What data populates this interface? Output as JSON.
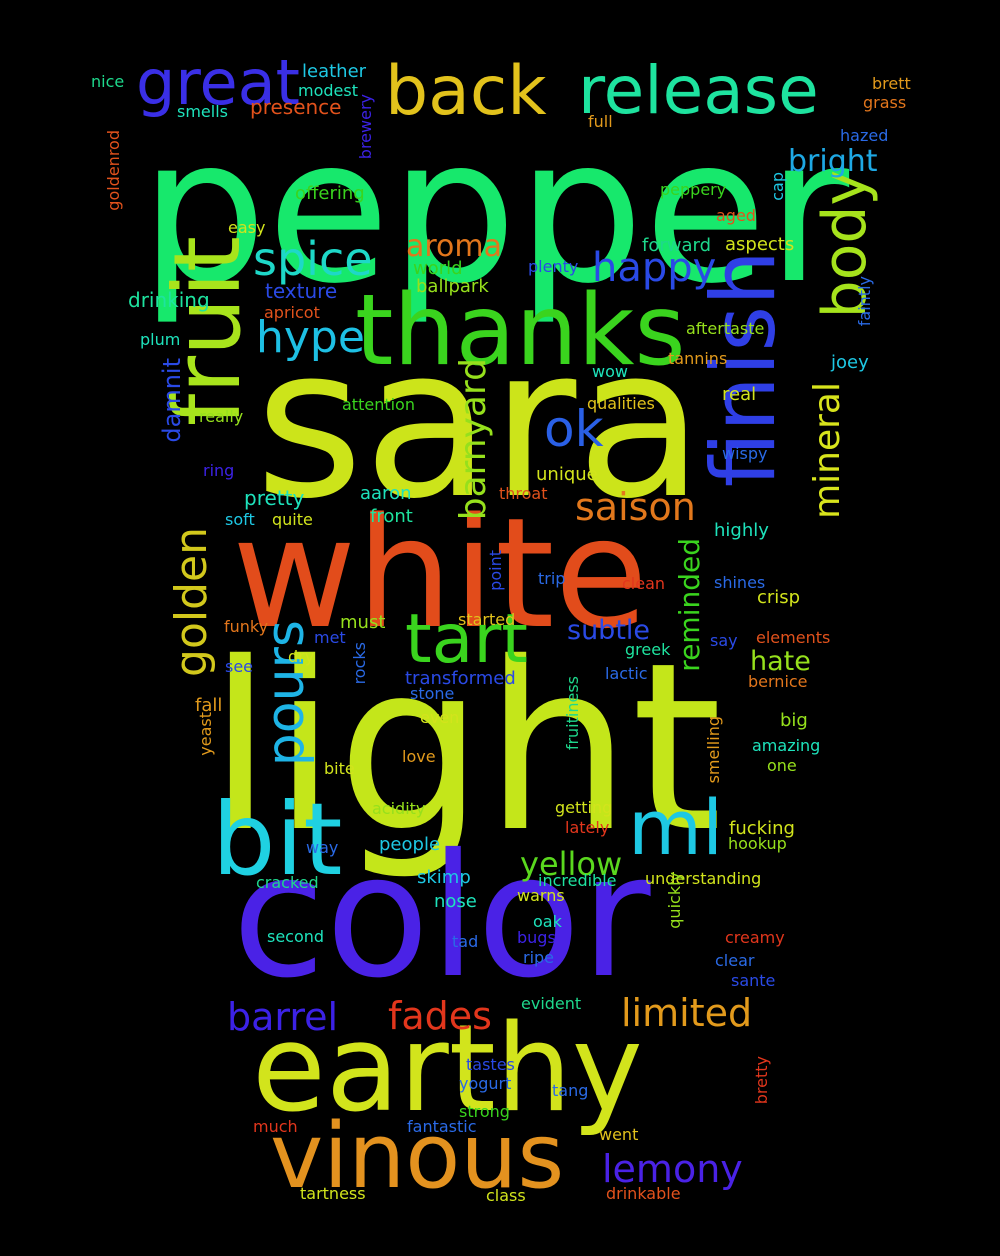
{
  "words": [
    {
      "text": "pepper",
      "color": "#17e86c"
    },
    {
      "text": "sara",
      "color": "#cce41a"
    },
    {
      "text": "light",
      "color": "#c4e61a"
    },
    {
      "text": "white",
      "color": "#e24c1b"
    },
    {
      "text": "color",
      "color": "#4a22e6"
    },
    {
      "text": "earthy",
      "color": "#d2e41c"
    },
    {
      "text": "thanks",
      "color": "#3ad41e"
    },
    {
      "text": "vinous",
      "color": "#e3921f"
    },
    {
      "text": "bit",
      "color": "#1fd1e2"
    },
    {
      "text": "finish",
      "color": "#2f3fe6"
    },
    {
      "text": "fruit",
      "color": "#a8e41c"
    },
    {
      "text": "release",
      "color": "#1ee39f"
    },
    {
      "text": "back",
      "color": "#e2c21c"
    },
    {
      "text": "great",
      "color": "#3a2fe6"
    },
    {
      "text": "body",
      "color": "#a6e31c"
    },
    {
      "text": "ml",
      "color": "#1ec8e4"
    },
    {
      "text": "tart",
      "color": "#3ad41e"
    },
    {
      "text": "pours",
      "color": "#1eb4e6"
    },
    {
      "text": "golden",
      "color": "#d2c81c"
    },
    {
      "text": "spice",
      "color": "#1ed8c8"
    },
    {
      "text": "hype",
      "color": "#1ec0e4"
    },
    {
      "text": "happy",
      "color": "#2a4ae6"
    },
    {
      "text": "ok",
      "color": "#2a60e6"
    },
    {
      "text": "saison",
      "color": "#e2781c"
    },
    {
      "text": "barnyard",
      "color": "#96e01c"
    },
    {
      "text": "mineral",
      "color": "#d8e41c"
    },
    {
      "text": "aroma",
      "color": "#e2761c"
    },
    {
      "text": "yellow",
      "color": "#5ad81e"
    },
    {
      "text": "lemony",
      "color": "#4a22e6"
    },
    {
      "text": "limited",
      "color": "#e29a1c"
    },
    {
      "text": "fades",
      "color": "#e2361c"
    },
    {
      "text": "barrel",
      "color": "#3c22e6"
    },
    {
      "text": "reminded",
      "color": "#3ad41e"
    },
    {
      "text": "bright",
      "color": "#1ea8e4"
    },
    {
      "text": "damnit",
      "color": "#2a4ae6"
    },
    {
      "text": "subtle",
      "color": "#2a4ae6"
    },
    {
      "text": "hate",
      "color": "#96e01c"
    },
    {
      "text": "drinking",
      "color": "#1ee39f"
    },
    {
      "text": "texture",
      "color": "#2a4ae6"
    },
    {
      "text": "world",
      "color": "#3ad41e"
    },
    {
      "text": "ballpark",
      "color": "#96e01c"
    },
    {
      "text": "plenty",
      "color": "#2a4ae6"
    },
    {
      "text": "forward",
      "color": "#1ed88c"
    },
    {
      "text": "aspects",
      "color": "#d2e41c"
    },
    {
      "text": "aged",
      "color": "#e2521c"
    },
    {
      "text": "peppery",
      "color": "#3ad41e"
    },
    {
      "text": "offering",
      "color": "#3ad41e"
    },
    {
      "text": "easy",
      "color": "#d2e41c"
    },
    {
      "text": "full",
      "color": "#e29a1c"
    },
    {
      "text": "presence",
      "color": "#e2521c"
    },
    {
      "text": "smells",
      "color": "#1ee3bc"
    },
    {
      "text": "modest",
      "color": "#1ee3bc"
    },
    {
      "text": "leather",
      "color": "#1ec8e4"
    },
    {
      "text": "nice",
      "color": "#1ed88c"
    },
    {
      "text": "brett",
      "color": "#e29a1c"
    },
    {
      "text": "grass",
      "color": "#e2761c"
    },
    {
      "text": "hazed",
      "color": "#2a6ae6"
    },
    {
      "text": "cap",
      "color": "#1ec8e4"
    },
    {
      "text": "brewery",
      "color": "#3c22e6"
    },
    {
      "text": "goldenrod",
      "color": "#e2521c"
    },
    {
      "text": "apricot",
      "color": "#e2521c"
    },
    {
      "text": "plum",
      "color": "#1ee3bc"
    },
    {
      "text": "aftertaste",
      "color": "#96e01c"
    },
    {
      "text": "tannins",
      "color": "#e29a1c"
    },
    {
      "text": "joey",
      "color": "#1ec8e4"
    },
    {
      "text": "faintly",
      "color": "#2a6ae6"
    },
    {
      "text": "wow",
      "color": "#1ee3bc"
    },
    {
      "text": "attention",
      "color": "#3ad41e"
    },
    {
      "text": "qualities",
      "color": "#e2c21c"
    },
    {
      "text": "real",
      "color": "#d2e41c"
    },
    {
      "text": "really",
      "color": "#96e01c"
    },
    {
      "text": "ring",
      "color": "#3c22e6"
    },
    {
      "text": "wispy",
      "color": "#2a6ae6"
    },
    {
      "text": "unique",
      "color": "#d2e41c"
    },
    {
      "text": "throat",
      "color": "#e2521c"
    },
    {
      "text": "aaron",
      "color": "#1ee3bc"
    },
    {
      "text": "pretty",
      "color": "#1ee3bc"
    },
    {
      "text": "soft",
      "color": "#1ec8e4"
    },
    {
      "text": "quite",
      "color": "#d2e41c"
    },
    {
      "text": "front",
      "color": "#1ee39f"
    },
    {
      "text": "highly",
      "color": "#1ee3bc"
    },
    {
      "text": "point",
      "color": "#2a4ae6"
    },
    {
      "text": "trip",
      "color": "#2a6ae6"
    },
    {
      "text": "clean",
      "color": "#e2361c"
    },
    {
      "text": "shines",
      "color": "#2a6ae6"
    },
    {
      "text": "crisp",
      "color": "#d2e41c"
    },
    {
      "text": "started",
      "color": "#e2c21c"
    },
    {
      "text": "must",
      "color": "#96e01c"
    },
    {
      "text": "funky",
      "color": "#e2761c"
    },
    {
      "text": "met",
      "color": "#2a4ae6"
    },
    {
      "text": "rocks",
      "color": "#2a6ae6"
    },
    {
      "text": "say",
      "color": "#2a4ae6"
    },
    {
      "text": "elements",
      "color": "#e2521c"
    },
    {
      "text": "greek",
      "color": "#1ee39f"
    },
    {
      "text": "see",
      "color": "#2a4ae6"
    },
    {
      "text": "dry",
      "color": "#d2e41c"
    },
    {
      "text": "transformed",
      "color": "#2a4ae6"
    },
    {
      "text": "lactic",
      "color": "#2a6ae6"
    },
    {
      "text": "bernice",
      "color": "#e2761c"
    },
    {
      "text": "stone",
      "color": "#2a6ae6"
    },
    {
      "text": "fall",
      "color": "#e29a1c"
    },
    {
      "text": "even",
      "color": "#d2e41c"
    },
    {
      "text": "fruitiness",
      "color": "#1ed88c"
    },
    {
      "text": "yeast",
      "color": "#e29a1c"
    },
    {
      "text": "big",
      "color": "#96e01c"
    },
    {
      "text": "smelling",
      "color": "#e29a1c"
    },
    {
      "text": "amazing",
      "color": "#1ee3bc"
    },
    {
      "text": "love",
      "color": "#e29a1c"
    },
    {
      "text": "bite",
      "color": "#d2e41c"
    },
    {
      "text": "one",
      "color": "#96e01c"
    },
    {
      "text": "acidity",
      "color": "#96e01c"
    },
    {
      "text": "getting",
      "color": "#d2e41c"
    },
    {
      "text": "lately",
      "color": "#e2361c"
    },
    {
      "text": "fucking",
      "color": "#d2e41c"
    },
    {
      "text": "way",
      "color": "#2a6ae6"
    },
    {
      "text": "people",
      "color": "#1ec8e4"
    },
    {
      "text": "hookup",
      "color": "#96e01c"
    },
    {
      "text": "cracked",
      "color": "#1ed88c"
    },
    {
      "text": "incredible",
      "color": "#1ee39f"
    },
    {
      "text": "understanding",
      "color": "#d2e41c"
    },
    {
      "text": "skimp",
      "color": "#1ec8e4"
    },
    {
      "text": "nose",
      "color": "#1ee3bc"
    },
    {
      "text": "warns",
      "color": "#d2e41c"
    },
    {
      "text": "quickly",
      "color": "#96e01c"
    },
    {
      "text": "oak",
      "color": "#1ee3bc"
    },
    {
      "text": "bugs",
      "color": "#3c22e6"
    },
    {
      "text": "creamy",
      "color": "#e2361c"
    },
    {
      "text": "second",
      "color": "#1ee3bc"
    },
    {
      "text": "tad",
      "color": "#2a6ae6"
    },
    {
      "text": "ripe",
      "color": "#2a6ae6"
    },
    {
      "text": "clear",
      "color": "#2a6ae6"
    },
    {
      "text": "sante",
      "color": "#2a4ae6"
    },
    {
      "text": "evident",
      "color": "#1ed88c"
    },
    {
      "text": "tastes",
      "color": "#2a4ae6"
    },
    {
      "text": "bretty",
      "color": "#e2361c"
    },
    {
      "text": "yogurt",
      "color": "#2a6ae6"
    },
    {
      "text": "tang",
      "color": "#2a6ae6"
    },
    {
      "text": "strong",
      "color": "#3ad41e"
    },
    {
      "text": "much",
      "color": "#e2361c"
    },
    {
      "text": "fantastic",
      "color": "#2a6ae6"
    },
    {
      "text": "went",
      "color": "#e2c21c"
    },
    {
      "text": "tartness",
      "color": "#d2e41c"
    },
    {
      "text": "class",
      "color": "#d2e41c"
    },
    {
      "text": "drinkable",
      "color": "#e2521c"
    }
  ]
}
